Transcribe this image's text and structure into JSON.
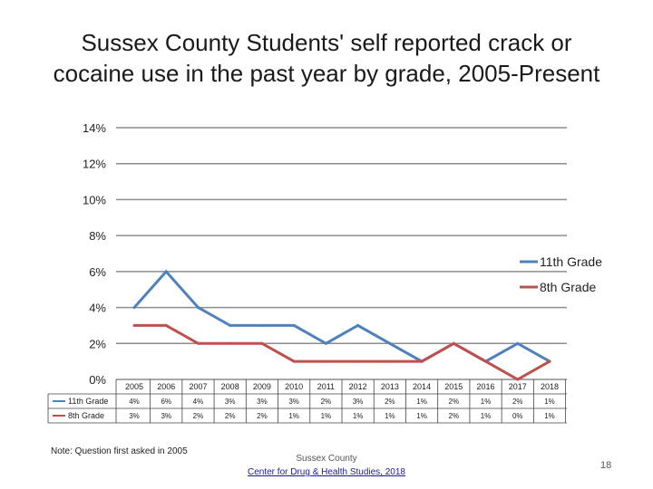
{
  "title_lines": [
    "Sussex County Students' self reported crack or",
    "cocaine use in the past year by grade, 2005-Present"
  ],
  "note": "Note: Question first asked in 2005",
  "source": {
    "org": "Sussex County",
    "link_text": "Center for Drug & Health Studies, 2018"
  },
  "page_number": "18",
  "chart_data": {
    "type": "line",
    "title": "Sussex County Students' self reported crack or cocaine use in the past year by grade, 2005-Present",
    "categories": [
      "2005",
      "2006",
      "2007",
      "2008",
      "2009",
      "2010",
      "2011",
      "2012",
      "2013",
      "2014",
      "2015",
      "2016",
      "2017",
      "2018"
    ],
    "ylim": [
      0,
      14
    ],
    "yticks": [
      0,
      2,
      4,
      6,
      8,
      10,
      12,
      14
    ],
    "ytick_labels": [
      "0%",
      "2%",
      "4%",
      "6%",
      "8%",
      "10%",
      "12%",
      "14%"
    ],
    "grid": true,
    "legend_position": "right",
    "series": [
      {
        "name": "11th Grade",
        "color": "#4f81bd",
        "values": [
          4,
          6,
          4,
          3,
          3,
          3,
          2,
          3,
          2,
          1,
          2,
          1,
          2,
          1
        ],
        "labels": [
          "4%",
          "6%",
          "4%",
          "3%",
          "3%",
          "3%",
          "2%",
          "3%",
          "2%",
          "1%",
          "2%",
          "1%",
          "2%",
          "1%"
        ]
      },
      {
        "name": "8th Grade",
        "color": "#c0504d",
        "values": [
          3,
          3,
          2,
          2,
          2,
          1,
          1,
          1,
          1,
          1,
          2,
          1,
          0,
          1
        ],
        "labels": [
          "3%",
          "3%",
          "2%",
          "2%",
          "2%",
          "1%",
          "1%",
          "1%",
          "1%",
          "1%",
          "2%",
          "1%",
          "0%",
          "1%"
        ]
      }
    ]
  }
}
